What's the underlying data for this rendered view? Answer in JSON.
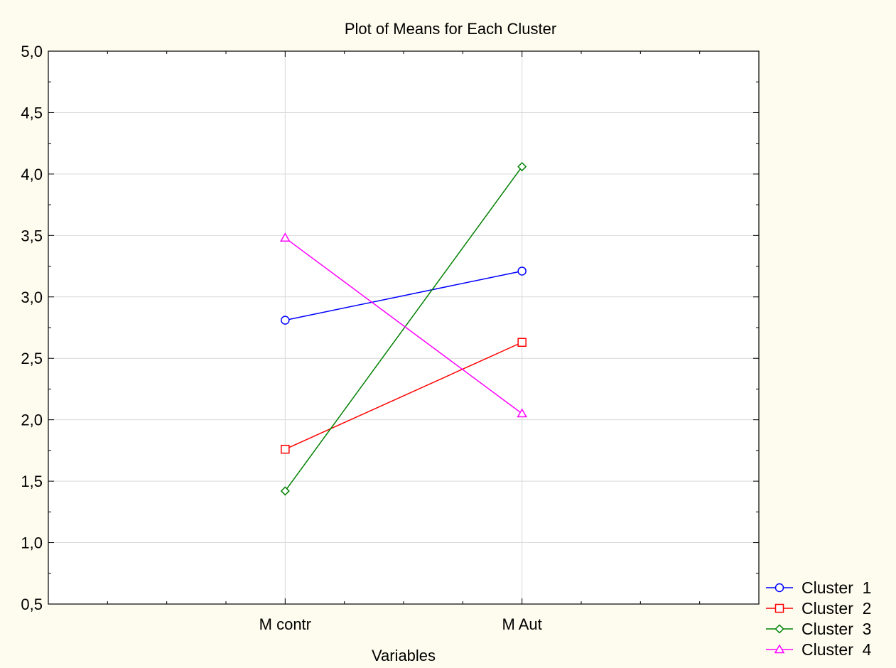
{
  "chart_data": {
    "type": "line",
    "title": "Plot of Means for Each Cluster",
    "xlabel": "Variables",
    "ylabel": "",
    "categories": [
      "M contr",
      "M Aut"
    ],
    "ylim": [
      0.5,
      5.0
    ],
    "yticks": [
      0.5,
      1.0,
      1.5,
      2.0,
      2.5,
      3.0,
      3.5,
      4.0,
      4.5,
      5.0
    ],
    "ytick_labels": [
      "0,5",
      "1,0",
      "1,5",
      "2,0",
      "2,5",
      "3,0",
      "3,5",
      "4,0",
      "4,5",
      "5,0"
    ],
    "grid": true,
    "legend_position": "bottom-right",
    "series": [
      {
        "name": "Cluster  1",
        "values": [
          2.81,
          3.21
        ],
        "color": "#0000ff",
        "marker": "circle"
      },
      {
        "name": "Cluster  2",
        "values": [
          1.76,
          2.63
        ],
        "color": "#ff0000",
        "marker": "square"
      },
      {
        "name": "Cluster  3",
        "values": [
          1.42,
          4.06
        ],
        "color": "#008000",
        "marker": "diamond"
      },
      {
        "name": "Cluster  4",
        "values": [
          3.48,
          2.05
        ],
        "color": "#ff00ff",
        "marker": "triangle"
      }
    ]
  }
}
